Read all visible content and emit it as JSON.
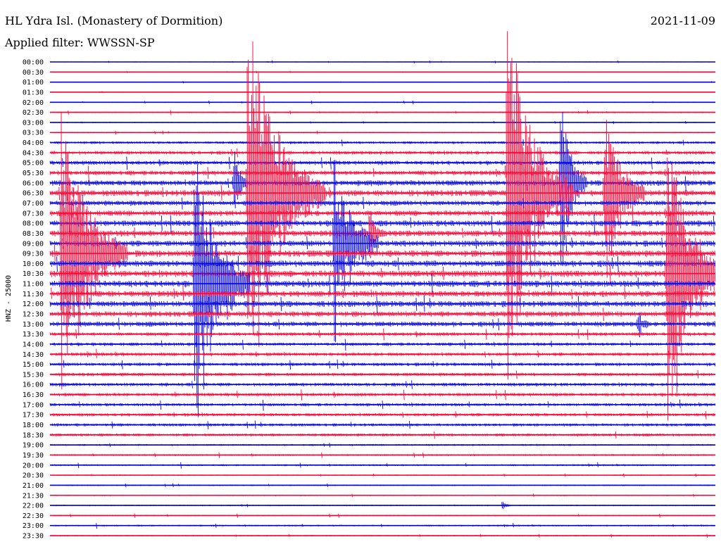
{
  "header": {
    "title": "HL Ydra Isl. (Monastery of Dormition)",
    "date": "2021-11-09",
    "filter": "Applied filter: WWSSN-SP"
  },
  "chart_data": {
    "type": "line",
    "title": "HL Ydra Isl. (Monastery of Dormition)",
    "ylabel": "HNZ - 25000",
    "xlabel": "",
    "y_ticks": [
      "00:00",
      "00:30",
      "01:00",
      "01:30",
      "02:00",
      "02:30",
      "03:00",
      "03:30",
      "04:00",
      "04:30",
      "05:00",
      "05:30",
      "06:00",
      "06:30",
      "07:00",
      "07:30",
      "08:00",
      "08:30",
      "09:00",
      "09:30",
      "10:00",
      "10:30",
      "11:00",
      "11:30",
      "12:00",
      "12:30",
      "13:00",
      "13:30",
      "14:00",
      "14:30",
      "15:00",
      "15:30",
      "16:00",
      "16:30",
      "17:00",
      "17:30",
      "18:00",
      "18:30",
      "19:00",
      "19:30",
      "20:00",
      "20:30",
      "21:00",
      "21:30",
      "22:00",
      "22:30",
      "23:00",
      "23:30"
    ],
    "x_range_minutes": [
      0,
      30
    ],
    "trace_colors": [
      "#0000e6",
      "#ff0033"
    ],
    "noise_level": [
      0.4,
      0.3,
      0.4,
      0.3,
      0.5,
      0.6,
      0.5,
      0.6,
      1.2,
      1.6,
      1.8,
      2.0,
      2.4,
      2.6,
      2.2,
      2.4,
      2.6,
      2.6,
      2.6,
      2.8,
      2.8,
      2.8,
      2.8,
      2.6,
      2.6,
      2.4,
      2.2,
      1.6,
      1.5,
      1.5,
      1.5,
      1.5,
      1.6,
      1.5,
      1.4,
      1.4,
      1.3,
      1.3,
      0.8,
      0.8,
      0.8,
      0.6,
      0.6,
      0.6,
      0.6,
      0.6,
      0.7,
      0.6
    ],
    "events": [
      {
        "row": 12,
        "x_min": 8.3,
        "amp": 60,
        "dur": 0.6
      },
      {
        "row": 13,
        "x_min": 8.9,
        "amp": 260,
        "dur": 3.5
      },
      {
        "row": 13,
        "x_min": 20.6,
        "amp": 270,
        "dur": 3.0
      },
      {
        "row": 12,
        "x_min": 23.0,
        "amp": 130,
        "dur": 1.2
      },
      {
        "row": 13,
        "x_min": 25.0,
        "amp": 120,
        "dur": 1.8
      },
      {
        "row": 18,
        "x_min": 12.8,
        "amp": 130,
        "dur": 2.0
      },
      {
        "row": 19,
        "x_min": 0.5,
        "amp": 200,
        "dur": 3.0
      },
      {
        "row": 21,
        "x_min": 27.8,
        "amp": 220,
        "dur": 2.5
      },
      {
        "row": 22,
        "x_min": 6.5,
        "amp": 200,
        "dur": 2.5
      },
      {
        "row": 17,
        "x_min": 14.4,
        "amp": 40,
        "dur": 0.6
      },
      {
        "row": 26,
        "x_min": 26.5,
        "amp": 20,
        "dur": 0.5
      },
      {
        "row": 44,
        "x_min": 20.4,
        "amp": 12,
        "dur": 0.3
      }
    ]
  }
}
